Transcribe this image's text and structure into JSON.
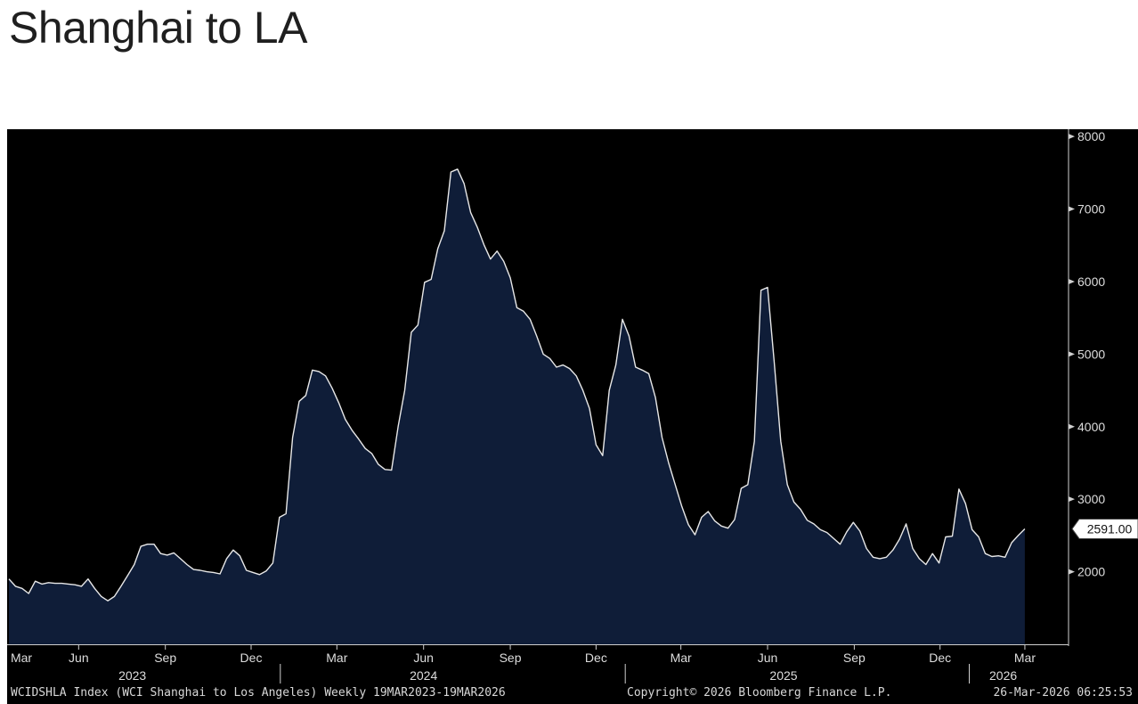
{
  "header": {
    "title": "Shanghai to LA"
  },
  "footer": {
    "description": "WCIDSHLA Index (WCI Shanghai to Los Angeles) Weekly 19MAR2023-19MAR2026",
    "copyright": "Copyright© 2026 Bloomberg Finance L.P.",
    "timestamp": "26-Mar-2026 06:25:53"
  },
  "colors": {
    "background": "#000000",
    "area_fill": "#0f1d38",
    "line": "#e8e8e8",
    "axis": "#cfcfcf",
    "text": "#dddddd"
  },
  "chart_data": {
    "type": "area",
    "title": "",
    "xlabel": "",
    "ylabel": "",
    "x_range": [
      "2023-03-19",
      "2026-03-19"
    ],
    "ylim": [
      1000,
      8100
    ],
    "y_ticks": [
      2000,
      3000,
      4000,
      5000,
      6000,
      7000,
      8000
    ],
    "month_ticks": [
      {
        "label": "Mar",
        "date": "2023-03-01"
      },
      {
        "label": "Jun",
        "date": "2023-06-01"
      },
      {
        "label": "Sep",
        "date": "2023-09-01"
      },
      {
        "label": "Dec",
        "date": "2023-12-01"
      },
      {
        "label": "Mar",
        "date": "2024-03-01"
      },
      {
        "label": "Jun",
        "date": "2024-06-01"
      },
      {
        "label": "Sep",
        "date": "2024-09-01"
      },
      {
        "label": "Dec",
        "date": "2024-12-01"
      },
      {
        "label": "Mar",
        "date": "2025-03-01"
      },
      {
        "label": "Jun",
        "date": "2025-06-01"
      },
      {
        "label": "Sep",
        "date": "2025-09-01"
      },
      {
        "label": "Dec",
        "date": "2025-12-01"
      },
      {
        "label": "Mar",
        "date": "2026-03-01"
      }
    ],
    "year_labels": [
      {
        "label": "2023",
        "date": "2023-07-28"
      },
      {
        "label": "2024",
        "date": "2024-06-01"
      },
      {
        "label": "2025",
        "date": "2025-06-18"
      },
      {
        "label": "2026",
        "date": "2026-02-06"
      }
    ],
    "year_dividers": [
      "2024-01-01",
      "2025-01-01",
      "2026-01-01"
    ],
    "last_value_label": "2591.00",
    "series": [
      {
        "points": [
          [
            "2023-03-19",
            1900
          ],
          [
            "2023-03-26",
            1800
          ],
          [
            "2023-04-02",
            1770
          ],
          [
            "2023-04-09",
            1700
          ],
          [
            "2023-04-16",
            1870
          ],
          [
            "2023-04-23",
            1830
          ],
          [
            "2023-04-30",
            1850
          ],
          [
            "2023-05-07",
            1840
          ],
          [
            "2023-05-14",
            1840
          ],
          [
            "2023-05-21",
            1830
          ],
          [
            "2023-05-28",
            1820
          ],
          [
            "2023-06-04",
            1800
          ],
          [
            "2023-06-11",
            1900
          ],
          [
            "2023-06-18",
            1770
          ],
          [
            "2023-06-25",
            1660
          ],
          [
            "2023-07-02",
            1600
          ],
          [
            "2023-07-09",
            1660
          ],
          [
            "2023-07-16",
            1800
          ],
          [
            "2023-07-23",
            1950
          ],
          [
            "2023-07-30",
            2100
          ],
          [
            "2023-08-06",
            2350
          ],
          [
            "2023-08-13",
            2380
          ],
          [
            "2023-08-20",
            2380
          ],
          [
            "2023-08-27",
            2250
          ],
          [
            "2023-09-03",
            2230
          ],
          [
            "2023-09-10",
            2260
          ],
          [
            "2023-09-17",
            2180
          ],
          [
            "2023-09-24",
            2100
          ],
          [
            "2023-10-01",
            2030
          ],
          [
            "2023-10-08",
            2020
          ],
          [
            "2023-10-15",
            2000
          ],
          [
            "2023-10-22",
            1990
          ],
          [
            "2023-10-29",
            1970
          ],
          [
            "2023-11-05",
            2180
          ],
          [
            "2023-11-12",
            2300
          ],
          [
            "2023-11-19",
            2220
          ],
          [
            "2023-11-26",
            2020
          ],
          [
            "2023-12-03",
            1990
          ],
          [
            "2023-12-10",
            1960
          ],
          [
            "2023-12-17",
            2010
          ],
          [
            "2023-12-24",
            2120
          ],
          [
            "2023-12-31",
            2750
          ],
          [
            "2024-01-07",
            2800
          ],
          [
            "2024-01-14",
            3850
          ],
          [
            "2024-01-21",
            4350
          ],
          [
            "2024-01-28",
            4430
          ],
          [
            "2024-02-04",
            4780
          ],
          [
            "2024-02-11",
            4760
          ],
          [
            "2024-02-18",
            4700
          ],
          [
            "2024-02-25",
            4530
          ],
          [
            "2024-03-03",
            4330
          ],
          [
            "2024-03-10",
            4100
          ],
          [
            "2024-03-17",
            3950
          ],
          [
            "2024-03-24",
            3830
          ],
          [
            "2024-03-31",
            3700
          ],
          [
            "2024-04-07",
            3630
          ],
          [
            "2024-04-14",
            3480
          ],
          [
            "2024-04-21",
            3410
          ],
          [
            "2024-04-28",
            3400
          ],
          [
            "2024-05-05",
            4000
          ],
          [
            "2024-05-12",
            4500
          ],
          [
            "2024-05-19",
            5300
          ],
          [
            "2024-05-26",
            5400
          ],
          [
            "2024-06-02",
            5990
          ],
          [
            "2024-06-09",
            6030
          ],
          [
            "2024-06-16",
            6450
          ],
          [
            "2024-06-23",
            6700
          ],
          [
            "2024-06-30",
            7510
          ],
          [
            "2024-07-07",
            7550
          ],
          [
            "2024-07-14",
            7350
          ],
          [
            "2024-07-21",
            6950
          ],
          [
            "2024-07-28",
            6750
          ],
          [
            "2024-08-04",
            6510
          ],
          [
            "2024-08-11",
            6310
          ],
          [
            "2024-08-18",
            6420
          ],
          [
            "2024-08-25",
            6280
          ],
          [
            "2024-09-01",
            6050
          ],
          [
            "2024-09-08",
            5640
          ],
          [
            "2024-09-15",
            5590
          ],
          [
            "2024-09-22",
            5480
          ],
          [
            "2024-09-29",
            5250
          ],
          [
            "2024-10-06",
            5000
          ],
          [
            "2024-10-13",
            4940
          ],
          [
            "2024-10-20",
            4820
          ],
          [
            "2024-10-27",
            4850
          ],
          [
            "2024-11-03",
            4800
          ],
          [
            "2024-11-10",
            4700
          ],
          [
            "2024-11-17",
            4500
          ],
          [
            "2024-11-24",
            4250
          ],
          [
            "2024-12-01",
            3750
          ],
          [
            "2024-12-08",
            3600
          ],
          [
            "2024-12-15",
            4500
          ],
          [
            "2024-12-22",
            4850
          ],
          [
            "2024-12-29",
            5480
          ],
          [
            "2025-01-05",
            5250
          ],
          [
            "2025-01-12",
            4820
          ],
          [
            "2025-01-19",
            4780
          ],
          [
            "2025-01-26",
            4730
          ],
          [
            "2025-02-02",
            4400
          ],
          [
            "2025-02-09",
            3850
          ],
          [
            "2025-02-16",
            3500
          ],
          [
            "2025-02-23",
            3200
          ],
          [
            "2025-03-02",
            2900
          ],
          [
            "2025-03-09",
            2650
          ],
          [
            "2025-03-16",
            2510
          ],
          [
            "2025-03-23",
            2750
          ],
          [
            "2025-03-30",
            2830
          ],
          [
            "2025-04-06",
            2700
          ],
          [
            "2025-04-13",
            2630
          ],
          [
            "2025-04-20",
            2600
          ],
          [
            "2025-04-27",
            2720
          ],
          [
            "2025-05-04",
            3150
          ],
          [
            "2025-05-11",
            3200
          ],
          [
            "2025-05-18",
            3800
          ],
          [
            "2025-05-25",
            5880
          ],
          [
            "2025-06-01",
            5920
          ],
          [
            "2025-06-08",
            4900
          ],
          [
            "2025-06-15",
            3800
          ],
          [
            "2025-06-22",
            3200
          ],
          [
            "2025-06-29",
            2960
          ],
          [
            "2025-07-06",
            2860
          ],
          [
            "2025-07-13",
            2710
          ],
          [
            "2025-07-20",
            2660
          ],
          [
            "2025-07-27",
            2580
          ],
          [
            "2025-08-03",
            2540
          ],
          [
            "2025-08-10",
            2460
          ],
          [
            "2025-08-17",
            2380
          ],
          [
            "2025-08-24",
            2550
          ],
          [
            "2025-08-31",
            2680
          ],
          [
            "2025-09-07",
            2560
          ],
          [
            "2025-09-14",
            2320
          ],
          [
            "2025-09-21",
            2200
          ],
          [
            "2025-09-28",
            2180
          ],
          [
            "2025-10-05",
            2200
          ],
          [
            "2025-10-12",
            2300
          ],
          [
            "2025-10-19",
            2450
          ],
          [
            "2025-10-26",
            2660
          ],
          [
            "2025-11-02",
            2320
          ],
          [
            "2025-11-09",
            2180
          ],
          [
            "2025-11-16",
            2100
          ],
          [
            "2025-11-23",
            2250
          ],
          [
            "2025-11-30",
            2120
          ],
          [
            "2025-12-07",
            2480
          ],
          [
            "2025-12-14",
            2490
          ],
          [
            "2025-12-21",
            3140
          ],
          [
            "2025-12-28",
            2940
          ],
          [
            "2026-01-04",
            2580
          ],
          [
            "2026-01-11",
            2480
          ],
          [
            "2026-01-18",
            2250
          ],
          [
            "2026-01-25",
            2210
          ],
          [
            "2026-02-01",
            2220
          ],
          [
            "2026-02-08",
            2200
          ],
          [
            "2026-02-15",
            2400
          ],
          [
            "2026-02-22",
            2500
          ],
          [
            "2026-03-01",
            2591
          ]
        ]
      }
    ]
  }
}
